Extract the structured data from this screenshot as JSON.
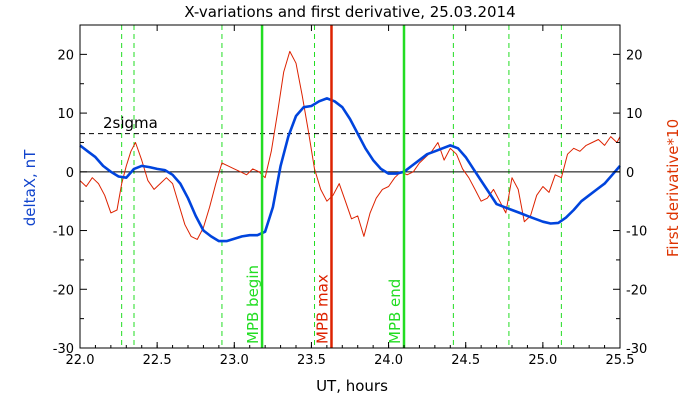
{
  "chart_data": {
    "type": "line",
    "title": "X-variations and first derivative, 25.03.2014",
    "xlabel": "UT, hours",
    "ylabel_left": "deltaX, nT",
    "ylabel_right": "First derivative*10",
    "xlim": [
      22.0,
      25.5
    ],
    "ylim": [
      -30,
      25
    ],
    "x_ticks": [
      22.0,
      22.5,
      23.0,
      23.5,
      24.0,
      24.5,
      25.0,
      25.5
    ],
    "x_tick_labels": [
      "22.0",
      "22.5",
      "23.0",
      "23.5",
      "24.0",
      "24.5",
      "25.0",
      "25.5"
    ],
    "y_ticks": [
      -30,
      -20,
      -10,
      0,
      10,
      20
    ],
    "y_tick_labels": [
      "-30",
      "-20",
      "-10",
      "0",
      "10",
      "20"
    ],
    "colors": {
      "deltaX": "#0044dd",
      "derivative": "#dd2200",
      "green": "#22dd22",
      "red": "#dd2200",
      "left_label": "#1144cc",
      "right_label": "#dd3300"
    },
    "threshold": {
      "label": "2sigma",
      "y": 6.5
    },
    "zero_line": 0,
    "vlines_dashed": [
      22.27,
      22.35,
      22.92,
      23.52,
      24.42,
      24.78,
      25.12
    ],
    "vlines_solid": [
      {
        "x": 23.18,
        "label": "MPB begin",
        "color": "green"
      },
      {
        "x": 23.63,
        "label": "MPB max",
        "color": "red"
      },
      {
        "x": 24.1,
        "label": "MPB end",
        "color": "green"
      }
    ],
    "series": [
      {
        "key": "deltaX",
        "axis": "left",
        "x": [
          22.0,
          22.05,
          22.1,
          22.15,
          22.2,
          22.25,
          22.3,
          22.35,
          22.4,
          22.45,
          22.5,
          22.55,
          22.6,
          22.65,
          22.7,
          22.75,
          22.8,
          22.85,
          22.9,
          22.95,
          23.0,
          23.05,
          23.1,
          23.15,
          23.2,
          23.25,
          23.3,
          23.35,
          23.4,
          23.45,
          23.5,
          23.55,
          23.6,
          23.65,
          23.7,
          23.75,
          23.8,
          23.85,
          23.9,
          23.95,
          24.0,
          24.05,
          24.1,
          24.15,
          24.2,
          24.25,
          24.3,
          24.35,
          24.4,
          24.45,
          24.5,
          24.55,
          24.6,
          24.65,
          24.7,
          24.75,
          24.8,
          24.85,
          24.9,
          24.95,
          25.0,
          25.05,
          25.1,
          25.15,
          25.2,
          25.25,
          25.3,
          25.35,
          25.4,
          25.45,
          25.5
        ],
        "y": [
          4.5,
          3.5,
          2.5,
          1.0,
          0.0,
          -0.8,
          -1.0,
          0.5,
          1.0,
          0.8,
          0.5,
          0.3,
          -0.5,
          -2.0,
          -4.5,
          -7.5,
          -10.0,
          -11.0,
          -11.8,
          -11.8,
          -11.4,
          -11.0,
          -10.8,
          -10.8,
          -10.2,
          -6.0,
          1.0,
          6.0,
          9.5,
          11.0,
          11.2,
          12.0,
          12.5,
          12.0,
          11.0,
          9.0,
          6.5,
          4.0,
          2.0,
          0.5,
          -0.3,
          -0.3,
          0.0,
          1.0,
          2.0,
          3.0,
          3.5,
          4.0,
          4.5,
          4.0,
          2.5,
          0.5,
          -1.5,
          -3.5,
          -5.5,
          -6.0,
          -6.5,
          -7.0,
          -7.5,
          -8.0,
          -8.5,
          -8.8,
          -8.7,
          -7.8,
          -6.5,
          -5.0,
          -4.0,
          -3.0,
          -2.0,
          -0.5,
          1.0
        ]
      },
      {
        "key": "derivative",
        "axis": "right",
        "x": [
          22.0,
          22.04,
          22.08,
          22.12,
          22.16,
          22.2,
          22.24,
          22.27,
          22.3,
          22.33,
          22.36,
          22.4,
          22.44,
          22.48,
          22.52,
          22.56,
          22.6,
          22.64,
          22.68,
          22.72,
          22.76,
          22.8,
          22.84,
          22.88,
          22.92,
          22.96,
          23.0,
          23.04,
          23.08,
          23.12,
          23.16,
          23.2,
          23.24,
          23.28,
          23.32,
          23.36,
          23.4,
          23.44,
          23.48,
          23.52,
          23.56,
          23.6,
          23.64,
          23.68,
          23.72,
          23.76,
          23.8,
          23.84,
          23.88,
          23.92,
          23.96,
          24.0,
          24.04,
          24.08,
          24.12,
          24.16,
          24.2,
          24.24,
          24.28,
          24.32,
          24.36,
          24.4,
          24.44,
          24.48,
          24.52,
          24.56,
          24.6,
          24.64,
          24.68,
          24.72,
          24.76,
          24.8,
          24.84,
          24.88,
          24.92,
          24.96,
          25.0,
          25.04,
          25.08,
          25.12,
          25.16,
          25.2,
          25.24,
          25.28,
          25.32,
          25.36,
          25.4,
          25.44,
          25.48,
          25.5
        ],
        "y": [
          -1.5,
          -2.5,
          -1.0,
          -2.0,
          -4.0,
          -7.0,
          -6.5,
          -2.0,
          1.0,
          3.5,
          5.0,
          2.0,
          -1.5,
          -3.0,
          -2.0,
          -1.0,
          -2.0,
          -5.5,
          -9.0,
          -11.0,
          -11.5,
          -9.5,
          -6.0,
          -2.0,
          1.5,
          1.0,
          0.5,
          0.0,
          -0.5,
          0.5,
          0.0,
          -1.0,
          3.5,
          10.0,
          17.0,
          20.5,
          18.5,
          13.0,
          7.0,
          0.5,
          -3.0,
          -5.0,
          -4.0,
          -2.0,
          -5.0,
          -8.0,
          -7.5,
          -11.0,
          -7.0,
          -4.5,
          -3.0,
          -2.5,
          -1.0,
          0.0,
          -0.5,
          0.0,
          1.5,
          2.5,
          3.5,
          5.0,
          2.0,
          4.0,
          3.0,
          0.5,
          -1.0,
          -3.0,
          -5.0,
          -4.5,
          -3.0,
          -5.0,
          -7.0,
          -1.0,
          -3.0,
          -8.5,
          -7.5,
          -4.0,
          -2.5,
          -3.5,
          -0.5,
          -1.0,
          3.0,
          4.0,
          3.5,
          4.5,
          5.0,
          5.5,
          4.5,
          6.0,
          5.0,
          6.0
        ]
      }
    ]
  }
}
